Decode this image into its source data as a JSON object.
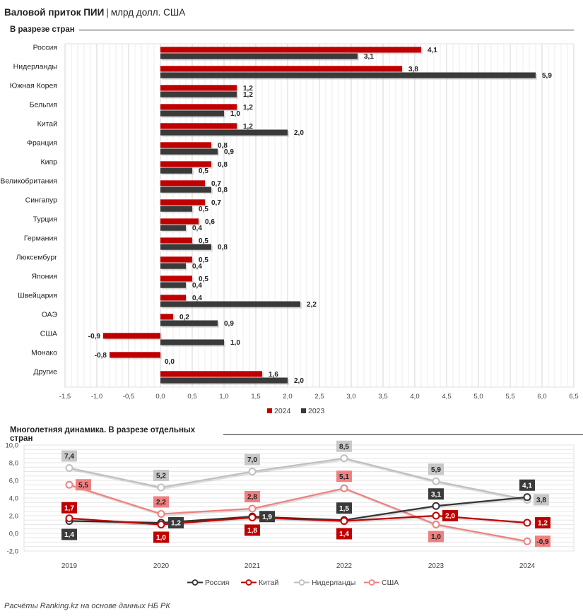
{
  "header": {
    "title": "Валовой приток ПИИ",
    "unit": "млрд долл. США"
  },
  "footer": {
    "source": "Расчёты Ranking.kz на основе данных НБ РК"
  },
  "chart_data": [
    {
      "type": "bar",
      "orientation": "horizontal",
      "title": "В разрезе стран",
      "categories": [
        "Россия",
        "Нидерланды",
        "Южная Корея",
        "Бельгия",
        "Китай",
        "Франция",
        "Кипр",
        "Великобритания",
        "Сингапур",
        "Турция",
        "Германия",
        "Люксембург",
        "Япония",
        "Швейцария",
        "ОАЭ",
        "США",
        "Монако",
        "Другие"
      ],
      "series": [
        {
          "name": "2024",
          "color": "#c00000",
          "values": [
            4.1,
            3.8,
            1.2,
            1.2,
            1.2,
            0.8,
            0.8,
            0.7,
            0.7,
            0.6,
            0.5,
            0.5,
            0.5,
            0.4,
            0.2,
            -0.9,
            -0.8,
            1.6
          ]
        },
        {
          "name": "2023",
          "color": "#3a3a3a",
          "values": [
            3.1,
            5.9,
            1.2,
            1.0,
            2.0,
            0.9,
            0.5,
            0.8,
            0.5,
            0.4,
            0.8,
            0.4,
            0.4,
            2.2,
            0.9,
            1.0,
            0.0,
            2.0
          ]
        }
      ],
      "labels": {
        "2024": [
          "4,1",
          "3,8",
          "1,2",
          "1,2",
          "1,2",
          "0,8",
          "0,8",
          "0,7",
          "0,7",
          "0,6",
          "0,5",
          "0,5",
          "0,5",
          "0,4",
          "0,2",
          "-0,9",
          "-0,8",
          "1,6"
        ],
        "2023": [
          "3,1",
          "5,9",
          "1,2",
          "1,0",
          "2,0",
          "0,9",
          "0,5",
          "0,8",
          "0,5",
          "0,4",
          "0,8",
          "0,4",
          "0,4",
          "2,2",
          "0,9",
          "1,0",
          "0,0",
          "2,0"
        ]
      },
      "xlim": [
        -1.5,
        6.5
      ],
      "ticks": [
        -1.5,
        -1.0,
        -0.5,
        0.0,
        0.5,
        1.0,
        1.5,
        2.0,
        2.5,
        3.0,
        3.5,
        4.0,
        4.5,
        5.0,
        5.5,
        6.0,
        6.5
      ],
      "tick_labels": [
        "-1,5",
        "-1,0",
        "-0,5",
        "0,0",
        "0,5",
        "1,0",
        "1,5",
        "2,0",
        "2,5",
        "3,0",
        "3,5",
        "4,0",
        "4,5",
        "5,0",
        "5,5",
        "6,0",
        "6,5"
      ],
      "legend": [
        "2024",
        "2023"
      ],
      "legend_position": "bottom"
    },
    {
      "type": "line",
      "title": "Многолетняя динамика. В разрезе отдельных стран",
      "x": [
        "2019",
        "2020",
        "2021",
        "2022",
        "2023",
        "2024"
      ],
      "ylim": [
        -2.0,
        10.0
      ],
      "yticks": [
        -2.0,
        0.0,
        2.0,
        4.0,
        6.0,
        8.0,
        10.0
      ],
      "ytick_labels": [
        "-2,0",
        "0,0",
        "2,0",
        "4,0",
        "6,0",
        "8,0",
        "10,0"
      ],
      "series": [
        {
          "name": "Нидерланды",
          "color": "#c0c0c0",
          "values": [
            7.4,
            5.2,
            7.0,
            8.5,
            5.9,
            3.8
          ],
          "labels": [
            "7,4",
            "5,2",
            "7,0",
            "8,5",
            "5,9",
            "3,8"
          ]
        },
        {
          "name": "США",
          "color": "#f08080",
          "values": [
            5.5,
            2.2,
            2.8,
            5.1,
            1.0,
            -0.9
          ],
          "labels": [
            "5,5",
            "2,2",
            "2,8",
            "5,1",
            "1,0",
            "-0,9"
          ]
        },
        {
          "name": "Россия",
          "color": "#333333",
          "values": [
            1.4,
            1.2,
            1.9,
            1.5,
            3.1,
            4.1
          ],
          "labels": [
            "1,4",
            "1,2",
            "1,9",
            "1,5",
            "3,1",
            "4,1"
          ]
        },
        {
          "name": "Китай",
          "color": "#c00000",
          "values": [
            1.7,
            1.0,
            1.8,
            1.4,
            2.0,
            1.2
          ],
          "labels": [
            "1,7",
            "1,0",
            "1,8",
            "1,4",
            "2,0",
            "1,2"
          ]
        }
      ],
      "legend": [
        "Россия",
        "Китай",
        "Нидерланды",
        "США"
      ],
      "legend_position": "bottom"
    }
  ]
}
